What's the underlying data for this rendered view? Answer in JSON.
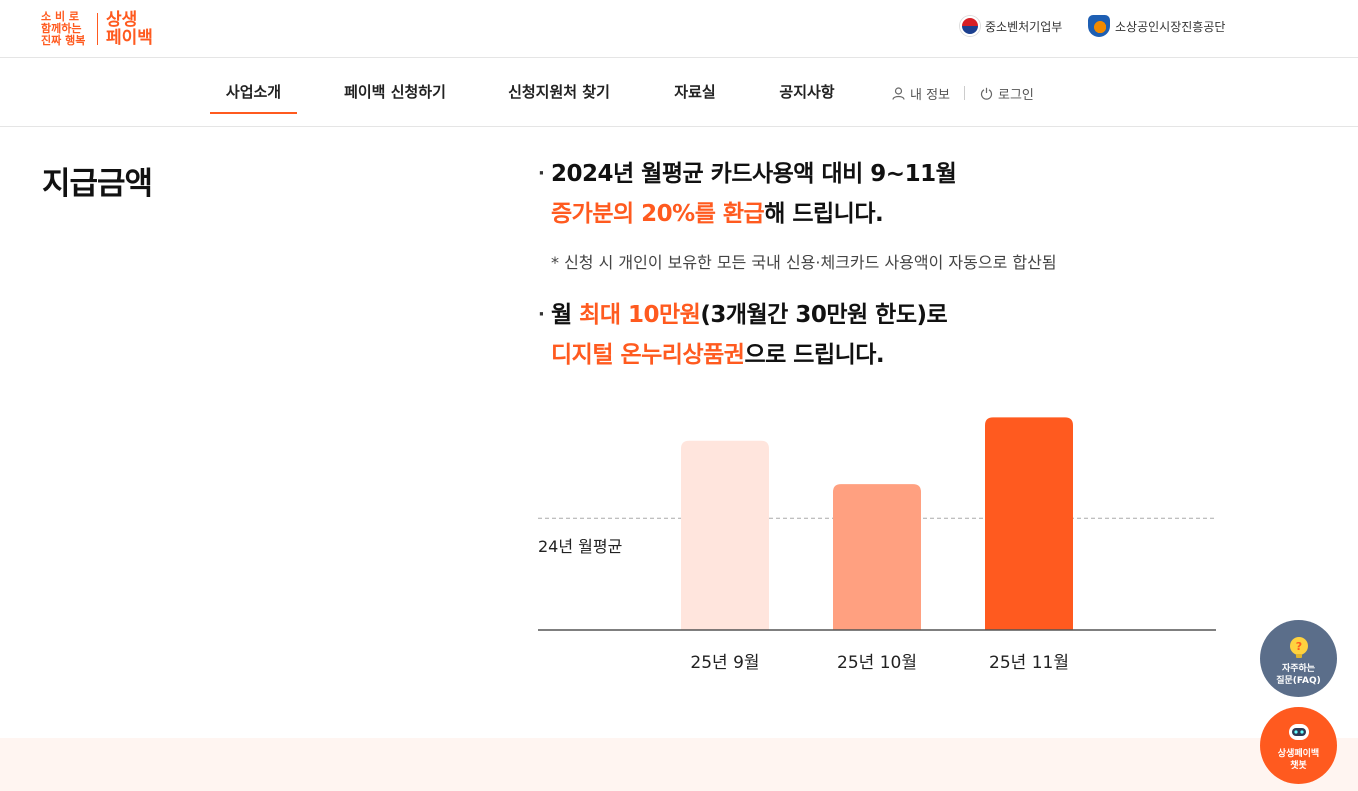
{
  "logo": {
    "slogan_lines": [
      "소 비 로",
      "함께하는",
      "진짜 행복"
    ],
    "main_lines": [
      "상생",
      "페이백"
    ]
  },
  "orgs": {
    "mss": "중소벤처기업부",
    "semas": "소상공인시장진흥공단"
  },
  "nav": {
    "items": [
      {
        "label": "사업소개",
        "active": true
      },
      {
        "label": "페이백 신청하기"
      },
      {
        "label": "신청지원처 찾기"
      },
      {
        "label": "자료실"
      },
      {
        "label": "공지사항"
      }
    ],
    "my_info": "내 정보",
    "login": "로그인"
  },
  "content": {
    "title": "지급금액",
    "bullet1": {
      "line1": "2024년 월평균 카드사용액 대비 9~11월",
      "line2_hl": "증가분의 20%를 환급",
      "line2_rest": "해 드립니다."
    },
    "note": "* 신청 시 개인이 보유한 모든 국내 신용·체크카드 사용액이 자동으로 합산됨",
    "bullet2": {
      "line1_pre": "월 ",
      "line1_hl": "최대 10만원",
      "line1_rest": "(3개월간 30만원 한도)로",
      "line2_hl": "디지털 온누리상품권",
      "line2_rest": "으로 드립니다."
    }
  },
  "chart_data": {
    "type": "bar",
    "categories": [
      "25년 9월",
      "25년 10월",
      "25년 11월"
    ],
    "values": [
      1.22,
      0.94,
      1.37
    ],
    "bar_colors": [
      "#ffe5dd",
      "#ffa080",
      "#ff5a1f"
    ],
    "reference_line": {
      "label": "24년 월평균",
      "value": 0.72
    },
    "ylim": [
      0,
      1.45
    ],
    "axis_color": "#555555"
  },
  "fabs": {
    "faq_lines": [
      "자주하는",
      "질문(FAQ)"
    ],
    "bot_lines": [
      "상생페이백",
      "챗봇"
    ]
  }
}
